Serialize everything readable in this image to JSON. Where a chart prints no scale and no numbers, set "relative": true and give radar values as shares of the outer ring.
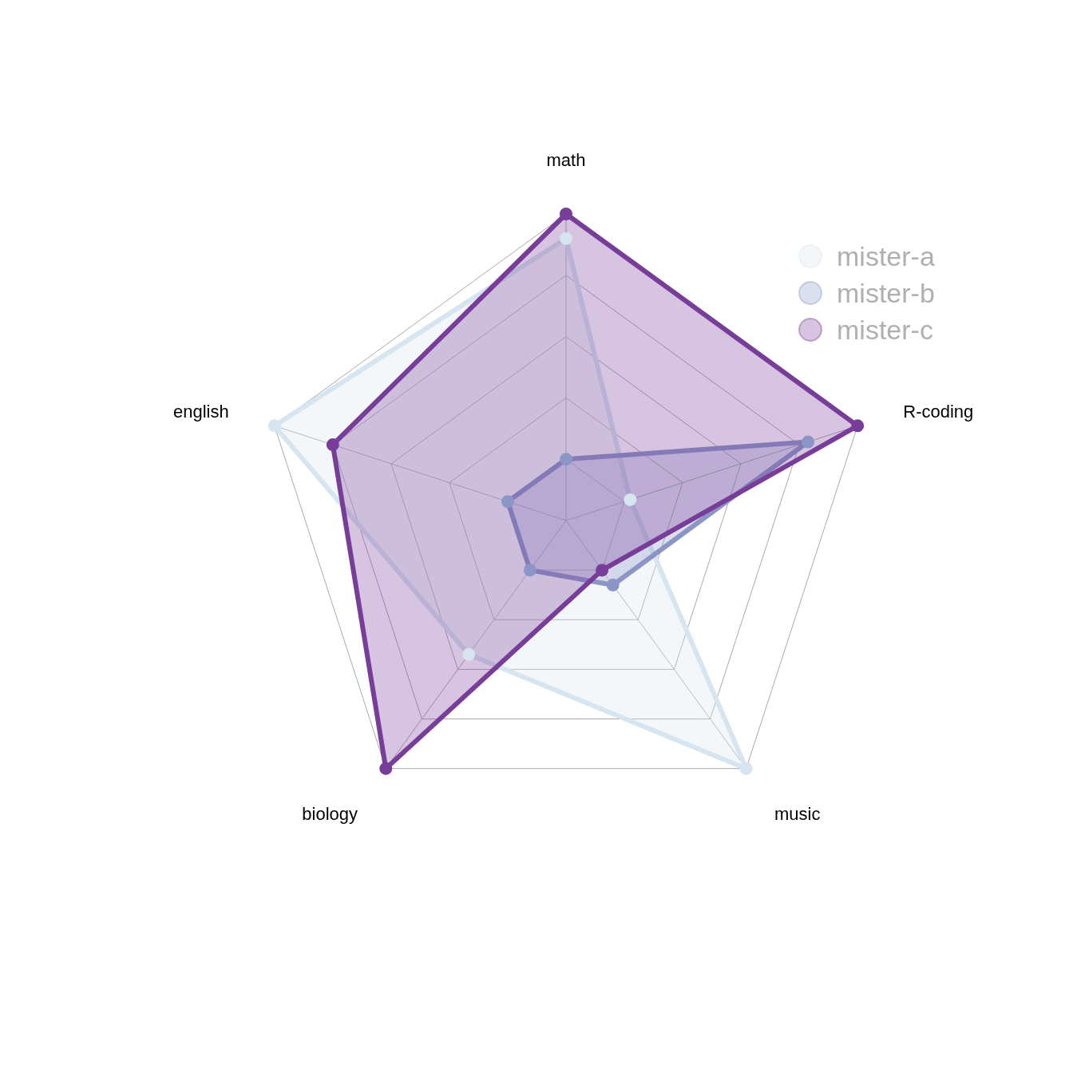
{
  "chart_data": {
    "type": "radar",
    "relative": true,
    "categories": [
      "math",
      "R-coding",
      "music",
      "biology",
      "english"
    ],
    "series": [
      {
        "name": "mister-a",
        "color": "#d6e5f0",
        "values": [
          0.92,
          0.22,
          1.0,
          0.54,
          1.0
        ]
      },
      {
        "name": "mister-b",
        "color": "#8c96c6",
        "values": [
          0.2,
          0.83,
          0.26,
          0.2,
          0.2
        ]
      },
      {
        "name": "mister-c",
        "color": "#773d99",
        "values": [
          1.0,
          1.0,
          0.2,
          1.0,
          0.8
        ]
      }
    ],
    "grid": true,
    "legend": "top right",
    "marker": "circle",
    "line_style": "solid"
  }
}
